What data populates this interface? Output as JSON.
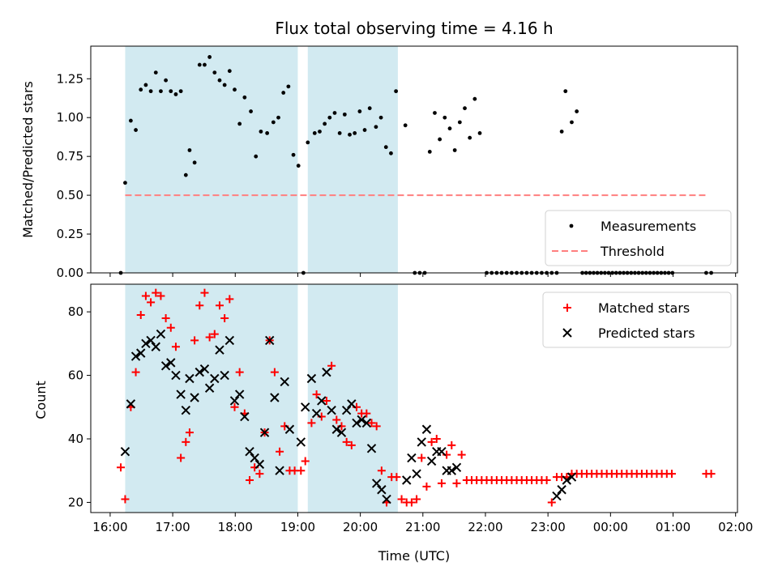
{
  "chart_data": {
    "title": "Flux total observing time = 4.16 h",
    "xlabel": "Time (UTC)",
    "time_ticks": [
      {
        "h": 16,
        "label": "16:00"
      },
      {
        "h": 17,
        "label": "17:00"
      },
      {
        "h": 18,
        "label": "18:00"
      },
      {
        "h": 19,
        "label": "19:00"
      },
      {
        "h": 20,
        "label": "20:00"
      },
      {
        "h": 21,
        "label": "21:00"
      },
      {
        "h": 22,
        "label": "22:00"
      },
      {
        "h": 23,
        "label": "23:00"
      },
      {
        "h": 24,
        "label": "00:00"
      },
      {
        "h": 25,
        "label": "01:00"
      },
      {
        "h": 26,
        "label": "02:00"
      }
    ],
    "xlim": [
      15.69,
      26.03
    ],
    "shaded_intervals": [
      [
        16.24,
        19.0
      ],
      [
        19.16,
        20.6
      ]
    ],
    "shade_color": "#add8e6",
    "top": {
      "type": "scatter",
      "ylabel": "Matched/Predicted stars",
      "ylim": [
        0,
        1.46
      ],
      "yticks": [
        "0.00",
        "0.25",
        "0.50",
        "0.75",
        "1.00",
        "1.25"
      ],
      "threshold": {
        "value": 0.5,
        "x": [
          16.24,
          26.58
        ],
        "color": "#ff7f7f"
      },
      "legend": {
        "position": "bottom-right",
        "entries": [
          "Measurements",
          "Threshold"
        ]
      },
      "measurements": [
        [
          16.17,
          0
        ],
        [
          16.24,
          0.58
        ],
        [
          16.33,
          0.98
        ],
        [
          16.41,
          0.92
        ],
        [
          16.49,
          1.18
        ],
        [
          16.57,
          1.21
        ],
        [
          16.65,
          1.17
        ],
        [
          16.73,
          1.29
        ],
        [
          16.81,
          1.17
        ],
        [
          16.89,
          1.24
        ],
        [
          16.97,
          1.17
        ],
        [
          17.05,
          1.15
        ],
        [
          17.13,
          1.17
        ],
        [
          17.21,
          0.63
        ],
        [
          17.27,
          0.79
        ],
        [
          17.35,
          0.71
        ],
        [
          17.43,
          1.34
        ],
        [
          17.51,
          1.34
        ],
        [
          17.59,
          1.39
        ],
        [
          17.67,
          1.29
        ],
        [
          17.75,
          1.24
        ],
        [
          17.83,
          1.21
        ],
        [
          17.91,
          1.3
        ],
        [
          17.99,
          1.18
        ],
        [
          18.07,
          0.96
        ],
        [
          18.15,
          1.13
        ],
        [
          18.25,
          1.04
        ],
        [
          18.33,
          0.75
        ],
        [
          18.41,
          0.91
        ],
        [
          18.51,
          0.9
        ],
        [
          18.61,
          0.97
        ],
        [
          18.69,
          1.0
        ],
        [
          18.77,
          1.16
        ],
        [
          18.85,
          1.2
        ],
        [
          18.93,
          0.76
        ],
        [
          19.01,
          0.69
        ],
        [
          19.09,
          0
        ],
        [
          19.16,
          0.84
        ],
        [
          19.27,
          0.9
        ],
        [
          19.35,
          0.91
        ],
        [
          19.43,
          0.96
        ],
        [
          19.51,
          1.0
        ],
        [
          19.59,
          1.03
        ],
        [
          19.67,
          0.9
        ],
        [
          19.75,
          1.02
        ],
        [
          19.83,
          0.89
        ],
        [
          19.91,
          0.9
        ],
        [
          19.99,
          1.04
        ],
        [
          20.07,
          0.92
        ],
        [
          20.15,
          1.06
        ],
        [
          20.25,
          0.94
        ],
        [
          20.33,
          1.0
        ],
        [
          20.41,
          0.81
        ],
        [
          20.49,
          0.77
        ],
        [
          20.57,
          1.17
        ],
        [
          20.72,
          0.95
        ],
        [
          20.87,
          0
        ],
        [
          20.95,
          0
        ],
        [
          21.03,
          0
        ],
        [
          21.11,
          0.78
        ],
        [
          21.19,
          1.03
        ],
        [
          21.27,
          0.86
        ],
        [
          21.35,
          1.0
        ],
        [
          21.43,
          0.93
        ],
        [
          21.51,
          0.79
        ],
        [
          21.59,
          0.97
        ],
        [
          21.67,
          1.06
        ],
        [
          21.75,
          0.87
        ],
        [
          21.83,
          1.12
        ],
        [
          21.91,
          0.9
        ],
        [
          22.02,
          0
        ],
        [
          22.1,
          0
        ],
        [
          22.18,
          0
        ],
        [
          22.26,
          0
        ],
        [
          22.34,
          0
        ],
        [
          22.42,
          0
        ],
        [
          22.5,
          0
        ],
        [
          22.58,
          0
        ],
        [
          22.66,
          0
        ],
        [
          22.74,
          0
        ],
        [
          22.82,
          0
        ],
        [
          22.9,
          0
        ],
        [
          22.98,
          0
        ],
        [
          23.06,
          0
        ],
        [
          23.14,
          0
        ],
        [
          23.22,
          0.91
        ],
        [
          23.28,
          1.17
        ],
        [
          23.38,
          0.97
        ],
        [
          23.46,
          1.04
        ],
        [
          23.55,
          0
        ],
        [
          23.61,
          0
        ],
        [
          23.67,
          0
        ],
        [
          23.73,
          0
        ],
        [
          23.79,
          0
        ],
        [
          23.85,
          0
        ],
        [
          23.91,
          0
        ],
        [
          23.97,
          0
        ],
        [
          24.03,
          0
        ],
        [
          24.09,
          0
        ],
        [
          24.15,
          0
        ],
        [
          24.21,
          0
        ],
        [
          24.27,
          0
        ],
        [
          24.33,
          0
        ],
        [
          24.39,
          0
        ],
        [
          24.45,
          0
        ],
        [
          24.51,
          0
        ],
        [
          24.57,
          0
        ],
        [
          24.63,
          0
        ],
        [
          24.69,
          0
        ],
        [
          24.75,
          0
        ],
        [
          24.81,
          0
        ],
        [
          24.87,
          0
        ],
        [
          24.93,
          0
        ],
        [
          24.99,
          0
        ],
        [
          25.53,
          0
        ],
        [
          25.61,
          0
        ]
      ]
    },
    "bottom": {
      "type": "scatter",
      "ylabel": "Count",
      "ylim": [
        16.8,
        88.7
      ],
      "yticks": [
        20,
        40,
        60,
        80
      ],
      "legend": {
        "position": "top-right",
        "entries": [
          "Matched stars",
          "Predicted stars"
        ]
      },
      "matched": [
        [
          16.17,
          31
        ],
        [
          16.24,
          21
        ],
        [
          16.33,
          50
        ],
        [
          16.41,
          61
        ],
        [
          16.49,
          79
        ],
        [
          16.57,
          85
        ],
        [
          16.65,
          83
        ],
        [
          16.73,
          86
        ],
        [
          16.81,
          85
        ],
        [
          16.89,
          78
        ],
        [
          16.97,
          75
        ],
        [
          17.05,
          69
        ],
        [
          17.13,
          34
        ],
        [
          17.21,
          39
        ],
        [
          17.27,
          42
        ],
        [
          17.35,
          71
        ],
        [
          17.43,
          82
        ],
        [
          17.51,
          86
        ],
        [
          17.59,
          72
        ],
        [
          17.67,
          73
        ],
        [
          17.75,
          82
        ],
        [
          17.83,
          78
        ],
        [
          17.91,
          84
        ],
        [
          17.99,
          50
        ],
        [
          18.07,
          61
        ],
        [
          18.15,
          48
        ],
        [
          18.23,
          27
        ],
        [
          18.31,
          31
        ],
        [
          18.39,
          29
        ],
        [
          18.47,
          42
        ],
        [
          18.55,
          71
        ],
        [
          18.63,
          61
        ],
        [
          18.71,
          36
        ],
        [
          18.79,
          44
        ],
        [
          18.87,
          30
        ],
        [
          18.95,
          30
        ],
        [
          19.05,
          30
        ],
        [
          19.12,
          33
        ],
        [
          19.22,
          45
        ],
        [
          19.3,
          54
        ],
        [
          19.38,
          47
        ],
        [
          19.46,
          52
        ],
        [
          19.54,
          63
        ],
        [
          19.62,
          46
        ],
        [
          19.7,
          44
        ],
        [
          19.78,
          39
        ],
        [
          19.86,
          38
        ],
        [
          19.94,
          50
        ],
        [
          20.02,
          48
        ],
        [
          20.1,
          48
        ],
        [
          20.18,
          45
        ],
        [
          20.26,
          44
        ],
        [
          20.34,
          30
        ],
        [
          20.42,
          20
        ],
        [
          20.5,
          28
        ],
        [
          20.58,
          28
        ],
        [
          20.66,
          21
        ],
        [
          20.74,
          20
        ],
        [
          20.82,
          20
        ],
        [
          20.9,
          21
        ],
        [
          20.98,
          34
        ],
        [
          21.06,
          25
        ],
        [
          21.14,
          39
        ],
        [
          21.22,
          40
        ],
        [
          21.3,
          26
        ],
        [
          21.38,
          35
        ],
        [
          21.46,
          38
        ],
        [
          21.54,
          26
        ],
        [
          21.62,
          35
        ],
        [
          21.7,
          27
        ],
        [
          21.78,
          27
        ],
        [
          21.86,
          27
        ],
        [
          21.94,
          27
        ],
        [
          22.02,
          27
        ],
        [
          22.1,
          27
        ],
        [
          22.18,
          27
        ],
        [
          22.26,
          27
        ],
        [
          22.34,
          27
        ],
        [
          22.42,
          27
        ],
        [
          22.5,
          27
        ],
        [
          22.58,
          27
        ],
        [
          22.66,
          27
        ],
        [
          22.74,
          27
        ],
        [
          22.82,
          27
        ],
        [
          22.9,
          27
        ],
        [
          22.98,
          27
        ],
        [
          23.06,
          20
        ],
        [
          23.14,
          28
        ],
        [
          23.22,
          28
        ],
        [
          23.3,
          28
        ],
        [
          23.38,
          29
        ],
        [
          23.46,
          29
        ],
        [
          23.54,
          29
        ],
        [
          23.62,
          29
        ],
        [
          23.7,
          29
        ],
        [
          23.78,
          29
        ],
        [
          23.86,
          29
        ],
        [
          23.94,
          29
        ],
        [
          24.02,
          29
        ],
        [
          24.1,
          29
        ],
        [
          24.18,
          29
        ],
        [
          24.26,
          29
        ],
        [
          24.34,
          29
        ],
        [
          24.42,
          29
        ],
        [
          24.5,
          29
        ],
        [
          24.58,
          29
        ],
        [
          24.66,
          29
        ],
        [
          24.74,
          29
        ],
        [
          24.82,
          29
        ],
        [
          24.9,
          29
        ],
        [
          24.98,
          29
        ],
        [
          25.53,
          29
        ],
        [
          25.61,
          29
        ]
      ],
      "predicted": [
        [
          16.24,
          36
        ],
        [
          16.33,
          51
        ],
        [
          16.41,
          66
        ],
        [
          16.49,
          67
        ],
        [
          16.57,
          70
        ],
        [
          16.65,
          71
        ],
        [
          16.73,
          69
        ],
        [
          16.81,
          73
        ],
        [
          16.89,
          63
        ],
        [
          16.97,
          64
        ],
        [
          17.05,
          60
        ],
        [
          17.13,
          54
        ],
        [
          17.21,
          49
        ],
        [
          17.27,
          59
        ],
        [
          17.35,
          53
        ],
        [
          17.43,
          61
        ],
        [
          17.51,
          62
        ],
        [
          17.59,
          56
        ],
        [
          17.67,
          59
        ],
        [
          17.75,
          68
        ],
        [
          17.83,
          60
        ],
        [
          17.91,
          71
        ],
        [
          17.99,
          52
        ],
        [
          18.07,
          54
        ],
        [
          18.15,
          47
        ],
        [
          18.23,
          36
        ],
        [
          18.31,
          34
        ],
        [
          18.39,
          32
        ],
        [
          18.47,
          42
        ],
        [
          18.55,
          71
        ],
        [
          18.63,
          53
        ],
        [
          18.71,
          30
        ],
        [
          18.79,
          58
        ],
        [
          18.87,
          43
        ],
        [
          19.05,
          39
        ],
        [
          19.12,
          50
        ],
        [
          19.22,
          59
        ],
        [
          19.3,
          48
        ],
        [
          19.38,
          52
        ],
        [
          19.46,
          61
        ],
        [
          19.54,
          49
        ],
        [
          19.62,
          43
        ],
        [
          19.7,
          42
        ],
        [
          19.78,
          49
        ],
        [
          19.86,
          51
        ],
        [
          19.94,
          45
        ],
        [
          20.02,
          46
        ],
        [
          20.1,
          45
        ],
        [
          20.18,
          37
        ],
        [
          20.26,
          26
        ],
        [
          20.34,
          24
        ],
        [
          20.42,
          21
        ],
        [
          20.74,
          27
        ],
        [
          20.82,
          34
        ],
        [
          20.9,
          29
        ],
        [
          20.98,
          39
        ],
        [
          21.06,
          43
        ],
        [
          21.14,
          33
        ],
        [
          21.22,
          36
        ],
        [
          21.3,
          36
        ],
        [
          21.38,
          30
        ],
        [
          21.46,
          30
        ],
        [
          21.54,
          31
        ],
        [
          23.14,
          22
        ],
        [
          23.22,
          24
        ],
        [
          23.3,
          27
        ],
        [
          23.38,
          28
        ]
      ]
    }
  }
}
